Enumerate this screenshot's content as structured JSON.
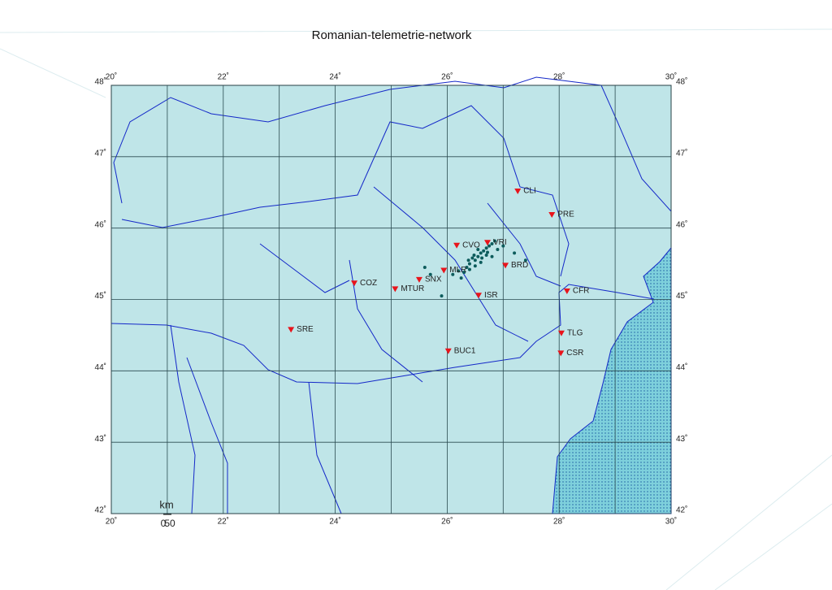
{
  "map": {
    "title": "Romanian-telemetrie-network",
    "lonlim": [
      20,
      30
    ],
    "latlim": [
      42,
      48
    ],
    "lon_ticks": [
      {
        "value": 20,
        "label": "20˚"
      },
      {
        "value": 22,
        "label": "22˚"
      },
      {
        "value": 24,
        "label": "24˚"
      },
      {
        "value": 26,
        "label": "26˚"
      },
      {
        "value": 28,
        "label": "28˚"
      },
      {
        "value": 30,
        "label": "30˚"
      }
    ],
    "lat_ticks": [
      {
        "value": 42,
        "label": "42˚"
      },
      {
        "value": 43,
        "label": "43˚"
      },
      {
        "value": 44,
        "label": "44˚"
      },
      {
        "value": 45,
        "label": "45˚"
      },
      {
        "value": 46,
        "label": "46˚"
      },
      {
        "value": 47,
        "label": "47˚"
      },
      {
        "value": 48,
        "label": "48˚"
      }
    ],
    "lon_grid": [
      20,
      21,
      22,
      23,
      24,
      25,
      26,
      27,
      28,
      29,
      30
    ],
    "lat_grid": [
      42,
      43,
      44,
      45,
      46,
      47,
      48
    ],
    "station_color": "#e8141b",
    "event_color": "#0d5c5c",
    "stations": [
      {
        "name": "CLI",
        "lon": 27.26,
        "lat": 46.52
      },
      {
        "name": "PRE",
        "lon": 27.87,
        "lat": 46.19
      },
      {
        "name": "CVO",
        "lon": 26.17,
        "lat": 45.76
      },
      {
        "name": "VRI",
        "lon": 26.72,
        "lat": 45.8
      },
      {
        "name": "MLR",
        "lon": 25.94,
        "lat": 45.41
      },
      {
        "name": "BRD",
        "lon": 27.04,
        "lat": 45.48
      },
      {
        "name": "SNX",
        "lon": 25.5,
        "lat": 45.28
      },
      {
        "name": "COZ",
        "lon": 24.34,
        "lat": 45.23
      },
      {
        "name": "MTUR",
        "lon": 25.07,
        "lat": 45.15
      },
      {
        "name": "ISR",
        "lon": 26.56,
        "lat": 45.06
      },
      {
        "name": "CFR",
        "lon": 28.14,
        "lat": 45.12
      },
      {
        "name": "SRE",
        "lon": 23.21,
        "lat": 44.58
      },
      {
        "name": "TLG",
        "lon": 28.04,
        "lat": 44.53
      },
      {
        "name": "BUC1",
        "lon": 26.02,
        "lat": 44.28
      },
      {
        "name": "CSR",
        "lon": 28.03,
        "lat": 44.25
      }
    ],
    "events": {
      "lon": [
        26.4,
        26.5,
        26.6,
        26.7,
        26.8,
        26.55,
        26.65,
        26.45,
        26.35,
        26.75,
        26.85,
        26.6,
        26.5,
        26.4,
        26.3,
        26.7,
        26.9,
        27.0,
        26.2,
        26.1,
        25.6,
        25.7,
        26.55,
        26.62,
        26.48,
        26.72,
        26.38,
        26.8,
        27.2,
        27.4,
        25.9,
        26.25
      ],
      "lat": [
        45.5,
        45.55,
        45.65,
        45.72,
        45.78,
        45.6,
        45.68,
        45.58,
        45.45,
        45.75,
        45.82,
        45.52,
        45.47,
        45.42,
        45.38,
        45.62,
        45.7,
        45.75,
        45.4,
        45.35,
        45.45,
        45.35,
        45.7,
        45.58,
        45.62,
        45.66,
        45.55,
        45.6,
        45.65,
        45.55,
        45.05,
        45.3
      ]
    },
    "scale": {
      "unit": "km",
      "start": "0",
      "end": "50"
    }
  }
}
